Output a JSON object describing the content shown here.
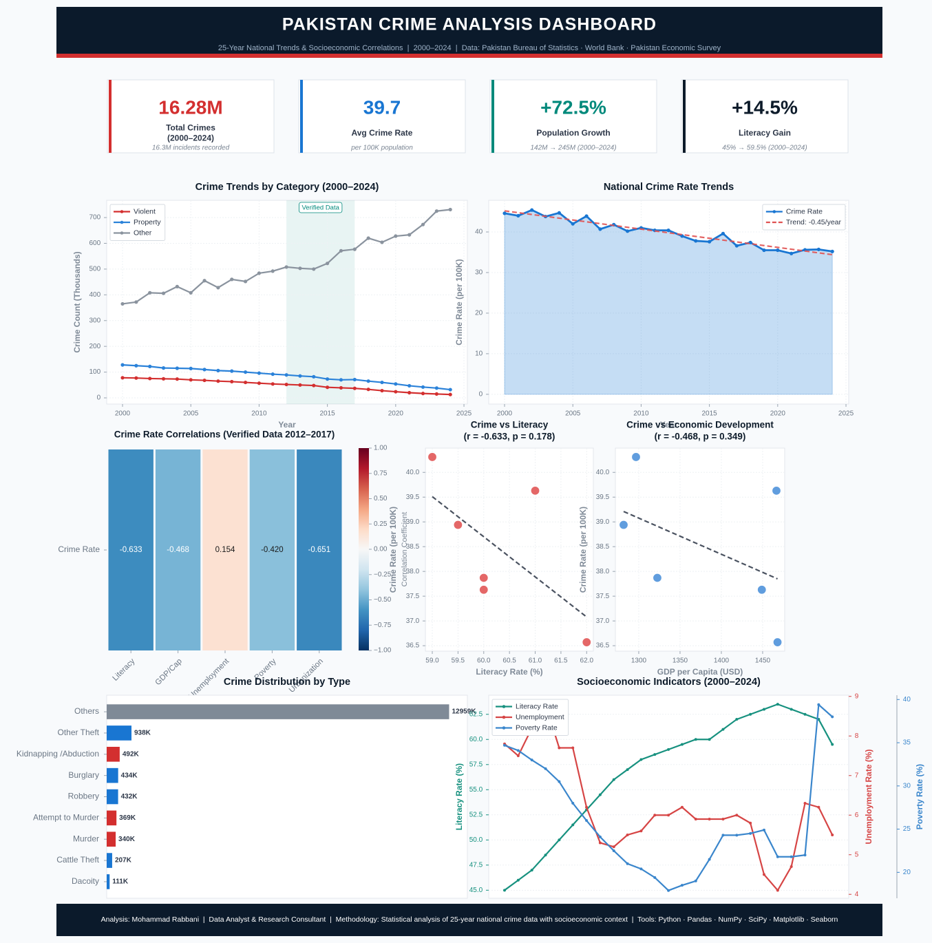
{
  "header": {
    "title": "PAKISTAN CRIME ANALYSIS DASHBOARD",
    "subtitle": "25-Year National Trends & Socioeconomic Correlations  |  2000–2024  |  Data: Pakistan Bureau of Statistics · World Bank · Pakistan Economic Survey"
  },
  "kpis": [
    {
      "value": "16.28M",
      "label_lines": [
        "Total Crimes",
        "(2000–2024)"
      ],
      "sub": "16.3M incidents recorded",
      "color": "#d32f2f"
    },
    {
      "value": "39.7",
      "label_lines": [
        "Avg Crime Rate"
      ],
      "sub": "per 100K population",
      "color": "#1976d2"
    },
    {
      "value": "+72.5%",
      "label_lines": [
        "Population Growth"
      ],
      "sub": "142M → 245M (2000–2024)",
      "color": "#00897b"
    },
    {
      "value": "+14.5%",
      "label_lines": [
        "Literacy Gain"
      ],
      "sub": "45% → 59.5% (2000–2024)",
      "color": "#0d1b2a"
    }
  ],
  "chart_data": [
    {
      "type": "line",
      "title": "Crime Trends by Category (2000–2024)",
      "xlabel": "Year",
      "ylabel": "Crime Count (Thousands)",
      "x": [
        2000,
        2001,
        2002,
        2003,
        2004,
        2005,
        2006,
        2007,
        2008,
        2009,
        2010,
        2011,
        2012,
        2013,
        2014,
        2015,
        2016,
        2017,
        2018,
        2019,
        2020,
        2021,
        2022,
        2023,
        2024
      ],
      "series": [
        {
          "name": "Violent",
          "color": "#d32f2f",
          "markers": true,
          "values": [
            78,
            77,
            75,
            74,
            73,
            70,
            68,
            65,
            63,
            60,
            57,
            54,
            52,
            50,
            48,
            41,
            39,
            37,
            33,
            28,
            24,
            20,
            17,
            15,
            13
          ]
        },
        {
          "name": "Property",
          "color": "#2b82d9",
          "markers": true,
          "values": [
            128,
            125,
            122,
            116,
            115,
            114,
            110,
            106,
            104,
            100,
            96,
            92,
            89,
            85,
            82,
            73,
            70,
            71,
            65,
            60,
            54,
            47,
            42,
            38,
            32
          ]
        },
        {
          "name": "Other",
          "color": "#8a939e",
          "markers": true,
          "values": [
            365,
            372,
            408,
            406,
            432,
            408,
            455,
            428,
            460,
            452,
            484,
            492,
            508,
            503,
            500,
            522,
            571,
            577,
            620,
            604,
            628,
            633,
            673,
            725,
            731
          ]
        }
      ],
      "xlim": [
        1998.84,
        2025.25
      ],
      "ylim": [
        -24,
        767
      ],
      "xticks": [
        2000,
        2005,
        2010,
        2015,
        2020,
        2025
      ],
      "yticks": [
        0,
        100,
        200,
        300,
        400,
        500,
        600,
        700
      ],
      "grid": true,
      "legend": "upper left",
      "highlight": {
        "range": [
          2012,
          2017
        ],
        "label": "Verified Data",
        "color": "#00897b"
      }
    },
    {
      "type": "line",
      "title": "National Crime Rate Trends",
      "xlabel": "Year",
      "ylabel": "Crime Rate (per 100K)",
      "x": [
        2000,
        2001,
        2002,
        2003,
        2004,
        2005,
        2006,
        2007,
        2008,
        2009,
        2010,
        2011,
        2012,
        2013,
        2014,
        2015,
        2016,
        2017,
        2018,
        2019,
        2020,
        2021,
        2022,
        2023,
        2024
      ],
      "series": [
        {
          "name": "Crime Rate",
          "color": "#1976d2",
          "markers": true,
          "fill": true,
          "values": [
            44.6,
            44.0,
            45.4,
            43.8,
            44.7,
            42.0,
            43.9,
            40.7,
            41.8,
            40.2,
            41.0,
            40.4,
            40.4,
            39.0,
            37.8,
            37.6,
            39.6,
            36.6,
            37.4,
            35.5,
            35.5,
            34.7,
            35.6,
            35.7,
            35.2
          ]
        },
        {
          "name": "Trend: -0.45/year",
          "color": "#e05252",
          "dashed": true,
          "values": [
            45.2,
            44.75,
            44.3,
            43.85,
            43.4,
            42.95,
            42.5,
            42.05,
            41.6,
            41.15,
            40.7,
            40.25,
            39.8,
            39.35,
            38.9,
            38.45,
            38.0,
            37.55,
            37.1,
            36.65,
            36.2,
            35.75,
            35.3,
            34.85,
            34.4
          ]
        }
      ],
      "xlim": [
        1998.84,
        2025.2
      ],
      "ylim": [
        -2.4,
        47.8
      ],
      "xticks": [
        2000,
        2005,
        2010,
        2015,
        2020,
        2025
      ],
      "yticks": [
        0,
        10,
        20,
        30,
        40
      ],
      "grid": true,
      "legend": "upper right"
    },
    {
      "type": "heatmap",
      "title": "Crime Rate Correlations (Verified Data 2012–2017)",
      "rows": [
        "Crime Rate"
      ],
      "columns": [
        "Literacy",
        "GDP/Cap",
        "Unemployment",
        "Poverty",
        "Urbanization"
      ],
      "values": [
        -0.633,
        -0.468,
        0.154,
        -0.42,
        -0.651
      ],
      "value_labels": [
        "-0.633",
        "-0.468",
        "0.154",
        "-0.420",
        "-0.651"
      ],
      "colors": [
        "#053061",
        "#2166ac",
        "#4393c3",
        "#92c5de",
        "#d1e5f0",
        "#f7f7f7",
        "#fddbc7",
        "#f4a582",
        "#d6604d",
        "#b2182b",
        "#67001f"
      ],
      "clim": [
        -1,
        1
      ],
      "cticks": [
        {
          "value": 1,
          "label": "1.00"
        },
        {
          "value": 0.75,
          "label": "0.75"
        },
        {
          "value": 0.5,
          "label": "0.50"
        },
        {
          "value": 0.25,
          "label": "0.25"
        },
        {
          "value": 0,
          "label": "0.00"
        },
        {
          "value": -0.25,
          "label": "−0.25"
        },
        {
          "value": -0.5,
          "label": "−0.50"
        },
        {
          "value": -0.75,
          "label": "−0.75"
        },
        {
          "value": -1,
          "label": "−1.00"
        }
      ],
      "clabel": "Correlation Coefficient"
    },
    {
      "type": "scatter",
      "title": [
        "Crime vs Literacy",
        "(r = -0.633, p = 0.178)"
      ],
      "xlabel": "Literacy Rate (%)",
      "ylabel": "Crime Rate (per 100K)",
      "color": "#e05252",
      "x": [
        59.0,
        59.5,
        60.0,
        60.0,
        61.0,
        62.0
      ],
      "values": [
        40.31,
        38.94,
        37.87,
        37.63,
        39.63,
        36.57
      ],
      "trend": {
        "x": [
          59.0,
          62.0
        ],
        "values": [
          39.51,
          37.08
        ]
      },
      "xlim": [
        58.866,
        62.13
      ],
      "ylim": [
        36.39,
        40.49
      ],
      "xticks": [
        {
          "value": 59,
          "label": "59.0"
        },
        59.5,
        {
          "value": 60,
          "label": "60.0"
        },
        60.5,
        {
          "value": 61,
          "label": "61.0"
        },
        61.5,
        {
          "value": 62,
          "label": "62.0"
        }
      ],
      "yticks": [
        36.5,
        {
          "value": 37,
          "label": "37.0"
        },
        37.5,
        {
          "value": 38,
          "label": "38.0"
        },
        38.5,
        {
          "value": 39,
          "label": "39.0"
        },
        39.5,
        {
          "value": 40,
          "label": "40.0"
        }
      ],
      "grid": true
    },
    {
      "type": "scatter",
      "title": [
        "Crime vs Economic Development",
        "(r = -0.468, p = 0.349)"
      ],
      "xlabel": "GDP per Capita (USD)",
      "ylabel": "Crime Rate (per 100K)",
      "color": "#4a90d9",
      "x": [
        1281.7,
        1296.7,
        1322.5,
        1449,
        1466.7,
        1468
      ],
      "values": [
        38.94,
        40.31,
        37.87,
        37.63,
        39.63,
        36.57
      ],
      "trend": {
        "x": [
          1281.7,
          1468
        ],
        "values": [
          39.21,
          37.85
        ]
      },
      "xlim": [
        1271.7,
        1476.7
      ],
      "ylim": [
        36.39,
        40.49
      ],
      "xticks": [
        1300,
        1350,
        1400,
        1450
      ],
      "yticks": [
        36.5,
        {
          "value": 37,
          "label": "37.0"
        },
        37.5,
        {
          "value": 38,
          "label": "38.0"
        },
        38.5,
        {
          "value": 39,
          "label": "39.0"
        },
        39.5,
        {
          "value": 40,
          "label": "40.0"
        }
      ],
      "grid": true
    },
    {
      "type": "hbar",
      "title": "Crime Distribution by Type",
      "categories": [
        "Others",
        "Other Theft",
        "Kidnapping /Abduction",
        "Burglary",
        "Robbery",
        "Attempt to Murder",
        "Murder",
        "Cattle Theft",
        "Dacoity"
      ],
      "values": [
        12959,
        938,
        492,
        434,
        432,
        369,
        340,
        207,
        111
      ],
      "value_labels": [
        "12959K",
        "938K",
        "492K",
        "434K",
        "432K",
        "369K",
        "340K",
        "207K",
        "111K"
      ],
      "colors": [
        "#7f8a97",
        "#1976d2",
        "#d32f2f",
        "#1976d2",
        "#1976d2",
        "#d32f2f",
        "#d32f2f",
        "#1976d2",
        "#1976d2"
      ],
      "xlim": [
        0,
        13650
      ],
      "grid": true
    },
    {
      "type": "line",
      "title": "Socioeconomic Indicators (2000–2024)",
      "ylabel": "Literacy Rate (%)",
      "y2label": "Unemployment Rate (%)",
      "y3label": "Poverty Rate (%)",
      "x": [
        2000,
        2001,
        2002,
        2003,
        2004,
        2005,
        2006,
        2007,
        2008,
        2009,
        2010,
        2011,
        2012,
        2013,
        2014,
        2015,
        2016,
        2017,
        2018,
        2019,
        2020,
        2021,
        2022,
        2023,
        2024
      ],
      "series": [
        {
          "name": "Literacy Rate",
          "color": "#17917f",
          "markers": true,
          "axis": "y",
          "values": [
            45.0,
            46.0,
            47.0,
            48.5,
            50.0,
            51.5,
            53.0,
            54.5,
            56.0,
            57.0,
            58.0,
            58.5,
            59.0,
            59.5,
            60.0,
            60.0,
            61.0,
            62.0,
            62.5,
            63.0,
            63.5,
            63.0,
            62.5,
            62.0,
            59.5
          ]
        },
        {
          "name": "Unemployment",
          "color": "#d64545",
          "markers": true,
          "axis": "y2",
          "values": [
            7.8,
            7.5,
            8.2,
            8.8,
            7.7,
            7.7,
            6.2,
            5.3,
            5.2,
            5.5,
            5.6,
            6.0,
            6.0,
            6.2,
            5.9,
            5.9,
            5.9,
            6.0,
            5.8,
            4.5,
            4.1,
            4.7,
            6.3,
            6.2,
            5.5
          ]
        },
        {
          "name": "Poverty Rate",
          "color": "#3a86cc",
          "markers": true,
          "axis": "y3",
          "values": [
            34.7,
            34.1,
            33.0,
            32.0,
            30.5,
            28.0,
            26.0,
            24.1,
            22.5,
            21.0,
            20.4,
            19.4,
            17.9,
            18.5,
            19.0,
            21.5,
            24.3,
            24.3,
            24.5,
            24.9,
            21.8,
            21.8,
            22.0,
            39.4,
            38.0
          ]
        }
      ],
      "xlim": [
        1998.84,
        2025.2
      ],
      "ylim": [
        44.2,
        64.4
      ],
      "y2lim": [
        3.9,
        9.03
      ],
      "y3lim": [
        17,
        40.5
      ],
      "yticks": [
        {
          "value": 45,
          "label": "45.0"
        },
        47.5,
        {
          "value": 50,
          "label": "50.0"
        },
        52.5,
        {
          "value": 55,
          "label": "55.0"
        },
        57.5,
        {
          "value": 60,
          "label": "60.0"
        },
        62.5
      ],
      "y2ticks": [
        4,
        5,
        6,
        7,
        8,
        9
      ],
      "y3ticks": [
        20,
        25,
        30,
        35,
        40
      ],
      "grid": true,
      "legend": "upper left"
    }
  ],
  "footer": {
    "text": "Analysis: Mohammad Rabbani  |  Data Analyst & Research Consultant  |  Methodology: Statistical analysis of 25-year national crime data with socioeconomic context  |  Tools: Python · Pandas · NumPy · SciPy · Matplotlib · Seaborn"
  }
}
